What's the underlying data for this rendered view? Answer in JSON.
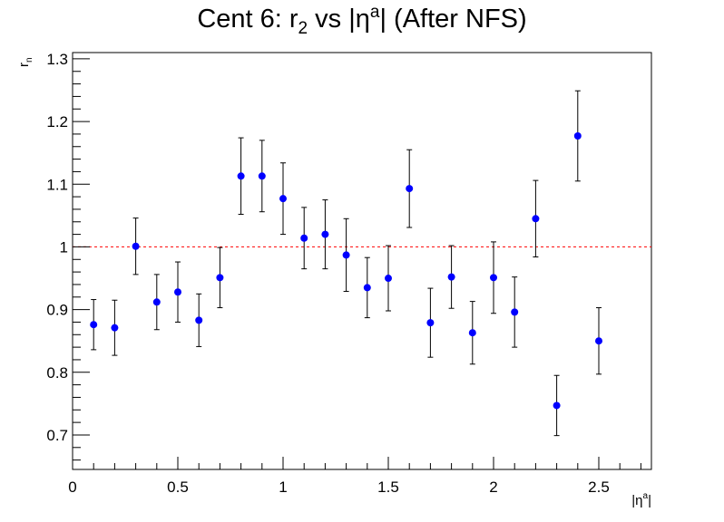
{
  "chart_data": {
    "type": "scatter",
    "title": {
      "prefix": "Cent 6: r",
      "sub": "2",
      "mid": " vs |η",
      "sup": "a",
      "suffix": "| (After NFS)"
    },
    "xlabel": {
      "base": "|η",
      "sup": "a",
      "end": "|"
    },
    "ylabel": {
      "base": "r",
      "sub": "n"
    },
    "xlim": [
      0,
      2.75
    ],
    "ylim": [
      0.645,
      1.31
    ],
    "x_ticks": [
      {
        "value": 0,
        "label": "0"
      },
      {
        "value": 0.5,
        "label": "0.5"
      },
      {
        "value": 1,
        "label": "1"
      },
      {
        "value": 1.5,
        "label": "1.5"
      },
      {
        "value": 2,
        "label": "2"
      },
      {
        "value": 2.5,
        "label": "2.5"
      }
    ],
    "y_ticks": [
      {
        "value": 0.7,
        "label": "0.7"
      },
      {
        "value": 0.8,
        "label": "0.8"
      },
      {
        "value": 0.9,
        "label": "0.9"
      },
      {
        "value": 1.0,
        "label": "1"
      },
      {
        "value": 1.1,
        "label": "1.1"
      },
      {
        "value": 1.2,
        "label": "1.2"
      },
      {
        "value": 1.3,
        "label": "1.3"
      }
    ],
    "reference_line": {
      "y": 1.0,
      "style": "dashed",
      "color": "#ff0000"
    },
    "grid": false,
    "legend": "none",
    "series": [
      {
        "color": "#0000ff",
        "points": [
          {
            "x": 0.1,
            "y": 0.876,
            "err": 0.04
          },
          {
            "x": 0.2,
            "y": 0.871,
            "err": 0.044
          },
          {
            "x": 0.3,
            "y": 1.001,
            "err": 0.045
          },
          {
            "x": 0.4,
            "y": 0.912,
            "err": 0.044
          },
          {
            "x": 0.5,
            "y": 0.928,
            "err": 0.048
          },
          {
            "x": 0.6,
            "y": 0.883,
            "err": 0.042
          },
          {
            "x": 0.7,
            "y": 0.951,
            "err": 0.048
          },
          {
            "x": 0.8,
            "y": 1.113,
            "err": 0.061
          },
          {
            "x": 0.9,
            "y": 1.113,
            "err": 0.057
          },
          {
            "x": 1.0,
            "y": 1.077,
            "err": 0.057
          },
          {
            "x": 1.1,
            "y": 1.014,
            "err": 0.049
          },
          {
            "x": 1.2,
            "y": 1.02,
            "err": 0.055
          },
          {
            "x": 1.3,
            "y": 0.987,
            "err": 0.058
          },
          {
            "x": 1.4,
            "y": 0.935,
            "err": 0.048
          },
          {
            "x": 1.5,
            "y": 0.95,
            "err": 0.052
          },
          {
            "x": 1.6,
            "y": 1.093,
            "err": 0.062
          },
          {
            "x": 1.7,
            "y": 0.879,
            "err": 0.055
          },
          {
            "x": 1.8,
            "y": 0.952,
            "err": 0.05
          },
          {
            "x": 1.9,
            "y": 0.863,
            "err": 0.05
          },
          {
            "x": 2.0,
            "y": 0.951,
            "err": 0.057
          },
          {
            "x": 2.1,
            "y": 0.896,
            "err": 0.056
          },
          {
            "x": 2.2,
            "y": 1.045,
            "err": 0.061
          },
          {
            "x": 2.3,
            "y": 0.747,
            "err": 0.048
          },
          {
            "x": 2.4,
            "y": 1.177,
            "err": 0.072
          },
          {
            "x": 2.5,
            "y": 0.85,
            "err": 0.053
          }
        ]
      }
    ]
  }
}
